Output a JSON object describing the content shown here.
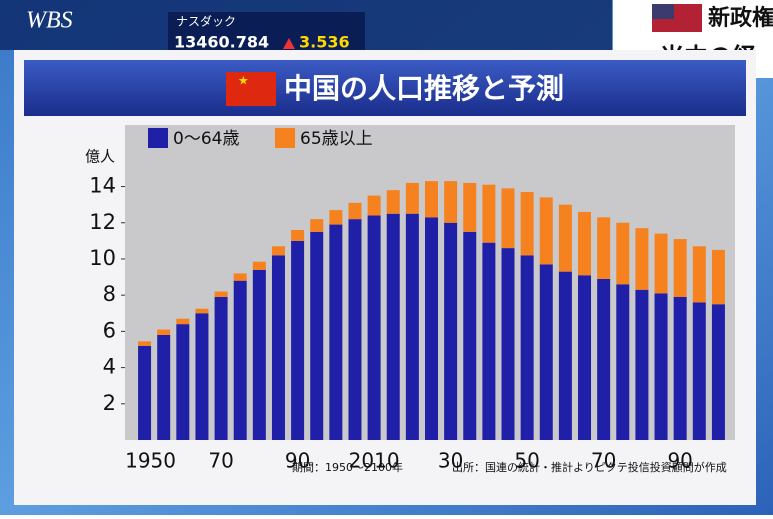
{
  "broadcast": {
    "logo": "WBS",
    "ticker_name": "ナスダック",
    "ticker_value": "13460.784",
    "ticker_change": "3.536",
    "news_1": "新政権",
    "news_2": "米中の経"
  },
  "chart_data": {
    "type": "stacked-bar",
    "title": "中国の人口推移と予測",
    "y_unit": "億人",
    "categories": [
      "1950",
      null,
      null,
      null,
      "70",
      null,
      null,
      null,
      "90",
      null,
      null,
      null,
      "2010",
      null,
      null,
      null,
      "30",
      null,
      null,
      null,
      "50",
      null,
      null,
      null,
      "70",
      null,
      null,
      null,
      "90",
      null,
      null
    ],
    "series": [
      {
        "name": "0～64歳",
        "color": "#1f1fa8",
        "values": [
          5.2,
          5.8,
          6.4,
          7.0,
          7.9,
          8.8,
          9.4,
          10.2,
          11.0,
          11.5,
          11.9,
          12.2,
          12.4,
          12.5,
          12.5,
          12.3,
          12.0,
          11.5,
          10.9,
          10.6,
          10.2,
          9.7,
          9.3,
          9.1,
          8.9,
          8.6,
          8.3,
          8.1,
          7.9,
          7.6,
          7.5
        ]
      },
      {
        "name": "65歳以上",
        "color": "#f5821f",
        "values": [
          0.25,
          0.3,
          0.3,
          0.25,
          0.3,
          0.4,
          0.45,
          0.5,
          0.6,
          0.7,
          0.8,
          0.9,
          1.1,
          1.3,
          1.7,
          2.0,
          2.3,
          2.7,
          3.2,
          3.3,
          3.5,
          3.7,
          3.7,
          3.5,
          3.4,
          3.4,
          3.4,
          3.3,
          3.2,
          3.1,
          3.0
        ]
      }
    ],
    "ylim": [
      0,
      17.4
    ],
    "yticks": [
      2,
      4,
      6,
      8,
      10,
      12,
      14
    ],
    "period_note": "期間：1950～2100年",
    "source_note": "出所：国連の統計・推計よりピクテ投信投資顧問が作成"
  }
}
